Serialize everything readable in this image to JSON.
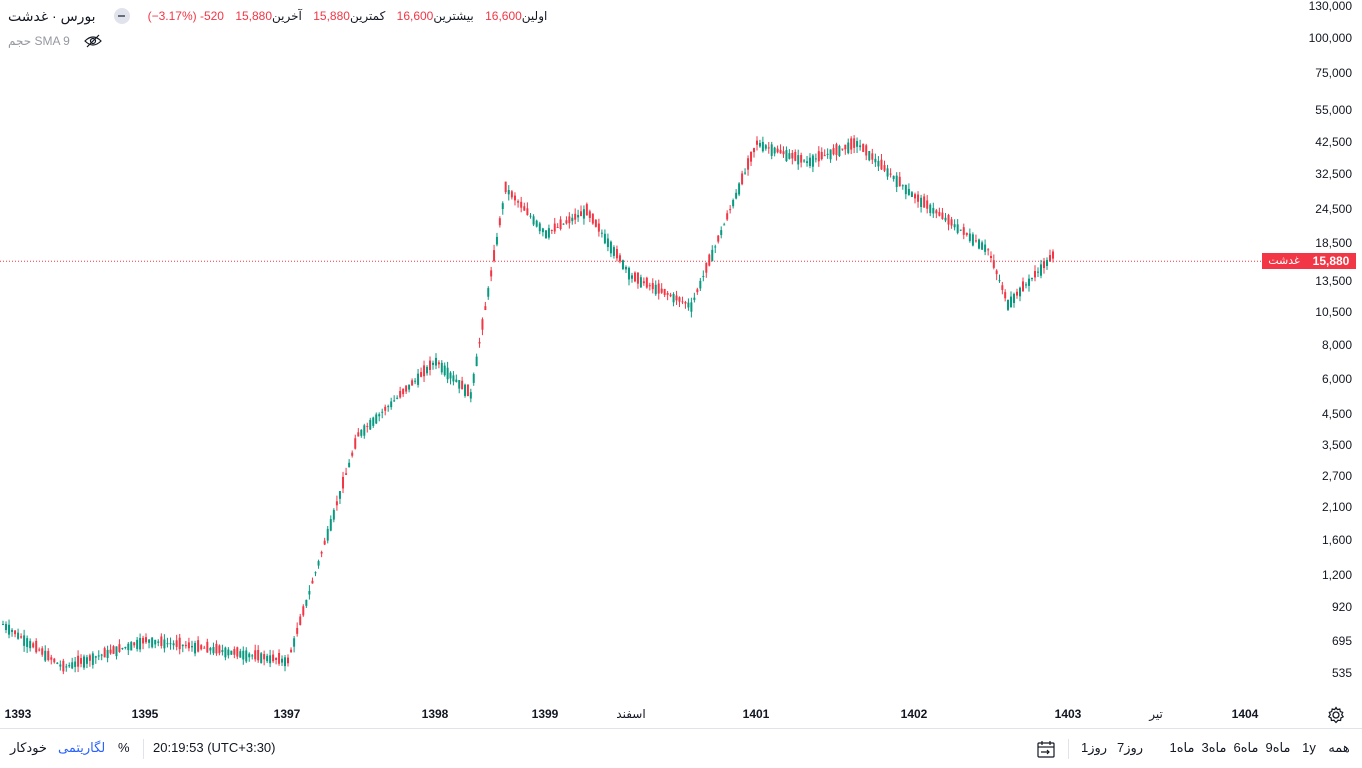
{
  "symbol": {
    "title": "بورس · غدشت",
    "badge": "غدشت"
  },
  "ohlc": {
    "open_label": "اولین",
    "open": "16,600",
    "high_label": "بیشترین",
    "high": "16,600",
    "low_label": "کمترین",
    "low": "15,880",
    "close_label": "آخرین",
    "close": "15,880",
    "change": "-520",
    "change_pct": "(−3.17%)"
  },
  "indicators": {
    "sma_label": "حجم SMA 9"
  },
  "price_scale": {
    "ticks": [
      "130,000",
      "100,000",
      "75,000",
      "55,000",
      "42,500",
      "32,500",
      "24,500",
      "18,500",
      "13,500",
      "10,500",
      "8,000",
      "6,000",
      "4,500",
      "3,500",
      "2,700",
      "2,100",
      "1,600",
      "1,200",
      "920",
      "695",
      "535"
    ],
    "tick_values": [
      130000,
      100000,
      75000,
      55000,
      42500,
      32500,
      24500,
      18500,
      13500,
      10500,
      8000,
      6000,
      4500,
      3500,
      2700,
      2100,
      1600,
      1200,
      920,
      695,
      535
    ],
    "last_price_label": "15,880",
    "last_price": 15880
  },
  "time_axis": {
    "ticks": [
      {
        "label": "1393",
        "bold": true
      },
      {
        "label": "1395",
        "bold": true
      },
      {
        "label": "1397",
        "bold": true
      },
      {
        "label": "1398",
        "bold": true
      },
      {
        "label": "1399",
        "bold": true
      },
      {
        "label": "اسفند",
        "bold": false
      },
      {
        "label": "1401",
        "bold": true
      },
      {
        "label": "1402",
        "bold": true
      },
      {
        "label": "1403",
        "bold": true
      },
      {
        "label": "تیر",
        "bold": false
      },
      {
        "label": "1404",
        "bold": true
      }
    ]
  },
  "range_buttons": [
    "همه",
    "1y",
    "9ماه",
    "6ماه",
    "3ماه",
    "1ماه",
    "7روز",
    "1روز"
  ],
  "bottom_bar": {
    "datetime": "20:19:53 (UTC+3:30)",
    "percent_label": "%",
    "log_label": "لگاریتمی",
    "auto_label": "خودکار"
  },
  "colors": {
    "up": "#089981",
    "down": "#f23645",
    "price_line": "#f23645"
  },
  "chart_data": {
    "type": "candlestick",
    "scale": "log",
    "x_labels": [
      "1393",
      "1395",
      "1397",
      "1398",
      "1399",
      "اسفند",
      "1401",
      "1402",
      "1403",
      "تیر",
      "1404"
    ],
    "close_path": [
      [
        "1393",
        800
      ],
      [
        "1393",
        560
      ],
      [
        "1395",
        700
      ],
      [
        "1395",
        650
      ],
      [
        "1397",
        590
      ],
      [
        "1397",
        3800
      ],
      [
        "1398",
        7000
      ],
      [
        "1398",
        5300
      ],
      [
        "1398",
        29000
      ],
      [
        "1399",
        20000
      ],
      [
        "1399",
        24000
      ],
      [
        "اسفند",
        14000
      ],
      [
        "اسفند",
        11000
      ],
      [
        "1401",
        42000
      ],
      [
        "1401",
        36000
      ],
      [
        "1401",
        42000
      ],
      [
        "1402",
        27000
      ],
      [
        "1402",
        17500
      ],
      [
        "1403",
        11200
      ],
      [
        "1403",
        16600
      ],
      [
        "1403",
        15880
      ]
    ],
    "last": 15880,
    "ylim": [
      500,
      130000
    ]
  }
}
